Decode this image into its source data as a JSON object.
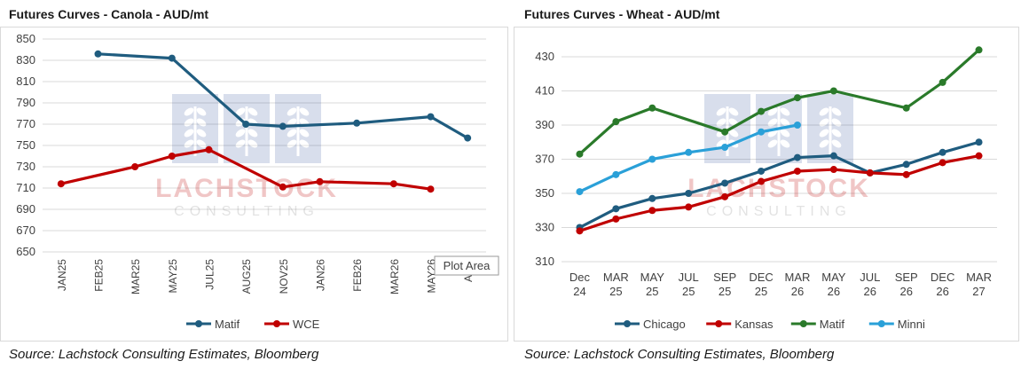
{
  "charts": [
    {
      "id": "canola",
      "title": "Futures Curves - Canola - AUD/mt",
      "source": "Source: Lachstock Consulting Estimates, Bloomberg",
      "tooltip": "Plot Area",
      "watermark": {
        "brand": "LACHSTOCK",
        "sub": "CONSULTING"
      }
    },
    {
      "id": "wheat",
      "title": "Futures Curves - Wheat - AUD/mt",
      "source": "Source: Lachstock Consulting Estimates, Bloomberg",
      "watermark": {
        "brand": "LACHSTOCK",
        "sub": "CONSULTING"
      }
    }
  ],
  "chart_data": [
    {
      "type": "line",
      "title": "Futures Curves - Canola - AUD/mt",
      "categories": [
        "JAN25",
        "FEB25",
        "MAR25",
        "MAY25",
        "JUL25",
        "AUG25",
        "NOV25",
        "JAN26",
        "FEB26",
        "MAR26",
        "MAY26",
        "AUG"
      ],
      "ylim": [
        650,
        850
      ],
      "yticks": [
        650,
        670,
        690,
        710,
        730,
        750,
        770,
        790,
        810,
        830,
        850
      ],
      "grid": true,
      "legend": "bottom",
      "xlabel_rotation": "vertical",
      "series": [
        {
          "name": "Matif",
          "color": "#1f5c7f",
          "values": [
            null,
            836,
            null,
            832,
            null,
            770,
            768,
            null,
            771,
            null,
            777,
            757
          ]
        },
        {
          "name": "WCE",
          "color": "#c00000",
          "values": [
            714,
            null,
            730,
            740,
            746,
            null,
            711,
            716,
            null,
            714,
            709,
            null
          ]
        }
      ]
    },
    {
      "type": "line",
      "title": "Futures Curves - Wheat - AUD/mt",
      "categories": [
        "Dec 24",
        "MAR 25",
        "MAY 25",
        "JUL 25",
        "SEP 25",
        "DEC 25",
        "MAR 26",
        "MAY 26",
        "JUL 26",
        "SEP 26",
        "DEC 26",
        "MAR 27"
      ],
      "ylim": [
        310,
        430
      ],
      "yticks": [
        310,
        330,
        350,
        370,
        390,
        410,
        430
      ],
      "grid": true,
      "legend": "bottom",
      "series": [
        {
          "name": "Chicago",
          "color": "#1f5c7f",
          "values": [
            330,
            341,
            347,
            350,
            356,
            363,
            371,
            372,
            362,
            367,
            374,
            380
          ]
        },
        {
          "name": "Kansas",
          "color": "#c00000",
          "values": [
            328,
            335,
            340,
            342,
            348,
            357,
            363,
            364,
            362,
            361,
            368,
            372
          ]
        },
        {
          "name": "Matif",
          "color": "#2a7a2a",
          "values": [
            373,
            392,
            400,
            null,
            386,
            398,
            406,
            410,
            null,
            400,
            415,
            434
          ]
        },
        {
          "name": "Minni",
          "color": "#2aa0d8",
          "values": [
            351,
            361,
            370,
            374,
            377,
            386,
            390,
            null,
            null,
            null,
            null,
            null
          ]
        }
      ]
    }
  ]
}
